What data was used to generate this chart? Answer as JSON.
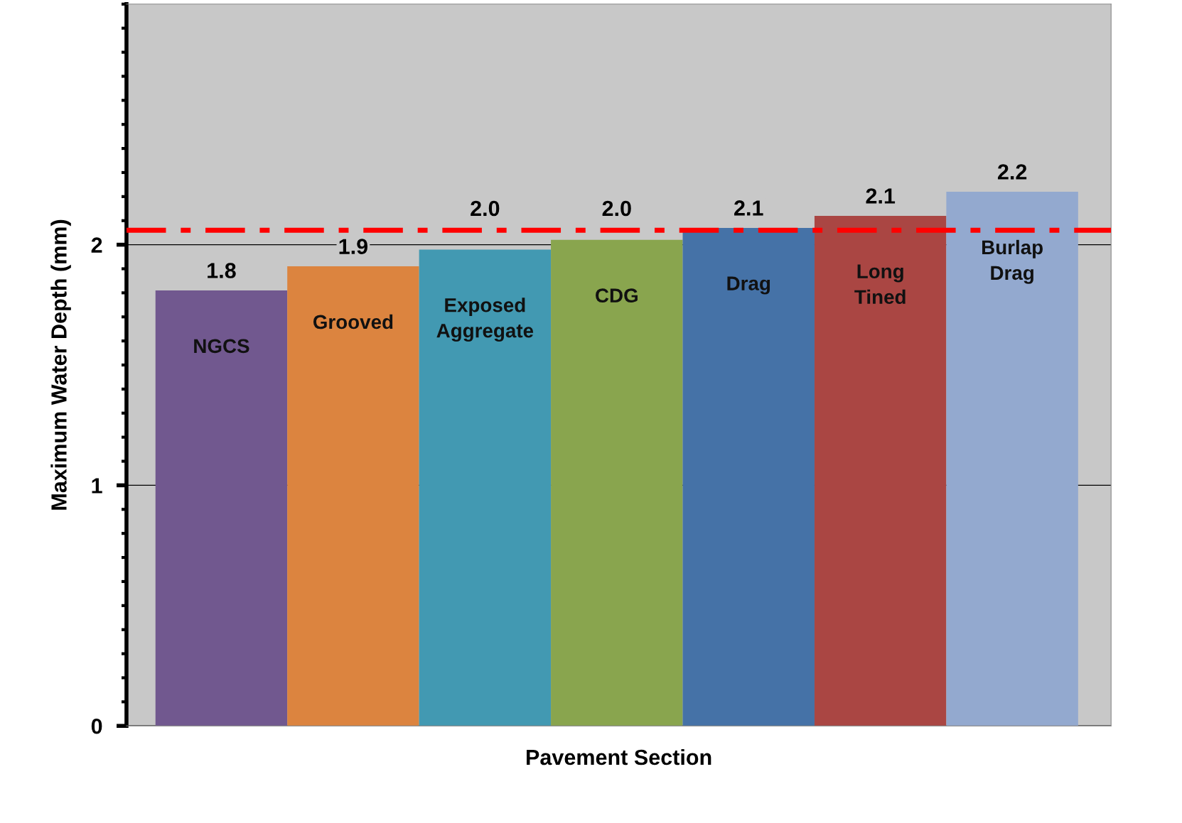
{
  "chart_data": {
    "type": "bar",
    "xlabel": "Pavement Section",
    "ylabel": "Maximum Water Depth (mm)",
    "categories": [
      "NGCS",
      "Grooved",
      "Exposed Aggregate",
      "CDG",
      "Drag",
      "Long Tined",
      "Burlap Drag"
    ],
    "values": [
      1.81,
      1.91,
      1.98,
      2.02,
      2.07,
      2.12,
      2.22
    ],
    "value_labels": [
      "1.8",
      "1.9",
      "2.0",
      "2.0",
      "2.1",
      "2.1",
      "2.2"
    ],
    "colors": [
      "#71588f",
      "#dc843f",
      "#4299b2",
      "#89a54e",
      "#4572a7",
      "#aa4643",
      "#93a9cf"
    ],
    "ylim": [
      0,
      3
    ],
    "yticks": [
      0,
      1,
      2
    ],
    "grid": "y",
    "tick_labels": "y",
    "ref_lines": [
      {
        "axis": "y",
        "value": 2.06,
        "color": "#ff0000",
        "line_style": "dashdot"
      }
    ]
  }
}
